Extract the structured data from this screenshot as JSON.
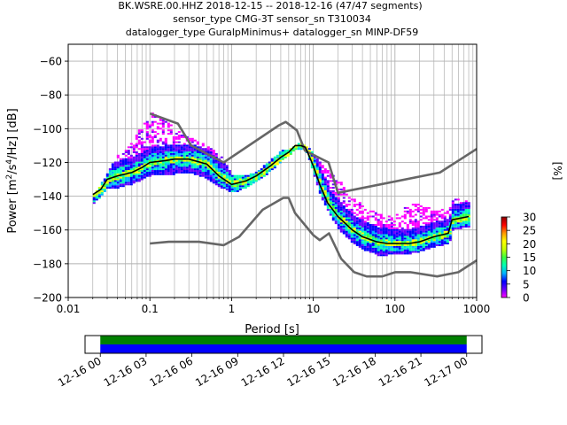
{
  "chart_data": [
    {
      "type": "heatmap",
      "subtype": "probabilistic-power-spectral-density",
      "title": "BK.WSRE.00.HHZ   2018-12-15 -- 2018-12-16  (47/47 segments)",
      "subtitle_1": "sensor_type CMG-3T sensor_sn T310034",
      "subtitle_2": "datalogger_type GuralpMinimus+ datalogger_sn MINP-DF59",
      "xlabel": "Period [s]",
      "ylabel": "Power [m²/s⁴/Hz] [dB]",
      "ylabel_parts": {
        "base": "Power [m",
        "sup1": "2",
        "mid1": "/s",
        "sup2": "4",
        "end": "/Hz] [dB]"
      },
      "xscale": "log",
      "xlim": [
        0.01,
        1000
      ],
      "ylim": [
        -200,
        -50
      ],
      "x_ticks": [
        0.01,
        0.1,
        1,
        10,
        100,
        1000
      ],
      "x_tick_labels": [
        "0.01",
        "0.1",
        "1",
        "10",
        "100",
        "1000"
      ],
      "y_ticks": [
        -60,
        -80,
        -100,
        -120,
        -140,
        -160,
        -180,
        -200
      ],
      "y_tick_labels": [
        "−60",
        "−80",
        "−100",
        "−120",
        "−140",
        "−160",
        "−180",
        "−200"
      ],
      "grid": true,
      "colorbar": {
        "label": "[%]",
        "range": [
          0,
          30
        ],
        "ticks": [
          0,
          5,
          10,
          15,
          20,
          25,
          30
        ],
        "tick_labels": [
          "0",
          "5",
          "10",
          "15",
          "20",
          "25",
          "30"
        ],
        "colormap": [
          "#ff00ff",
          "#6a00ff",
          "#0000ff",
          "#00b4ff",
          "#00ffb4",
          "#3cff3c",
          "#c8ff00",
          "#ffff00",
          "#ff9600",
          "#ff0000",
          "#8c0000"
        ]
      },
      "series": [
        {
          "role": "noise-model-high",
          "color": "#666666",
          "x": [
            0.1,
            0.22,
            0.32,
            0.8,
            3.8,
            4.6,
            6.3,
            7.9,
            15.4,
            20,
            354.8,
            1000
          ],
          "y": [
            -91,
            -97,
            -110,
            -120,
            -98,
            -96,
            -101,
            -113,
            -120,
            -138,
            -126,
            -112
          ]
        },
        {
          "role": "noise-model-low",
          "color": "#666666",
          "x": [
            0.1,
            0.17,
            0.4,
            0.8,
            1.24,
            2.4,
            4.3,
            5,
            6,
            10,
            12,
            15.6,
            21.9,
            31.6,
            45,
            70,
            101,
            154,
            328,
            600,
            1000
          ],
          "y": [
            -168,
            -167,
            -167,
            -169,
            -164,
            -148,
            -141,
            -141,
            -150,
            -163,
            -166,
            -162,
            -177,
            -185,
            -187.5,
            -187.5,
            -185,
            -185,
            -187.5,
            -185,
            -178
          ]
        },
        {
          "role": "mean-psd",
          "color": "#000000",
          "x": [
            0.02,
            0.025,
            0.03,
            0.04,
            0.06,
            0.08,
            0.1,
            0.15,
            0.2,
            0.3,
            0.5,
            0.7,
            1,
            1.5,
            2,
            3,
            4,
            5,
            6,
            7,
            8,
            10,
            12,
            15,
            20,
            30,
            40,
            60,
            80,
            100,
            150,
            200,
            300,
            450,
            500,
            800
          ],
          "y": [
            -139,
            -136,
            -130,
            -128,
            -126,
            -123,
            -120,
            -119,
            -118,
            -118,
            -121,
            -128,
            -133,
            -131,
            -128,
            -122,
            -117,
            -114,
            -110,
            -110,
            -111,
            -122,
            -133,
            -144,
            -152,
            -160,
            -164,
            -167,
            -168,
            -168,
            -168,
            -167,
            -164,
            -162,
            -154,
            -152
          ]
        }
      ],
      "heatmap_envelope": {
        "x": [
          0.02,
          0.025,
          0.03,
          0.04,
          0.06,
          0.08,
          0.1,
          0.15,
          0.2,
          0.3,
          0.5,
          0.7,
          1,
          1.5,
          2,
          3,
          4,
          5,
          6,
          7,
          8,
          10,
          12,
          15,
          20,
          30,
          40,
          60,
          80,
          100,
          150,
          200,
          300,
          450,
          500,
          800
        ],
        "y_max": [
          -139,
          -132,
          -125,
          -115,
          -108,
          -96,
          -90,
          -95,
          -100,
          -105,
          -110,
          -115,
          -128,
          -128,
          -125,
          -118,
          -113,
          -112,
          -109,
          -109,
          -110,
          -115,
          -120,
          -125,
          -130,
          -140,
          -145,
          -150,
          -152,
          -150,
          -145,
          -145,
          -148,
          -148,
          -142,
          -142
        ],
        "y_min": [
          -144,
          -140,
          -135,
          -135,
          -133,
          -130,
          -128,
          -127,
          -127,
          -126,
          -130,
          -135,
          -138,
          -135,
          -131,
          -125,
          -119,
          -116,
          -112,
          -112,
          -114,
          -128,
          -140,
          -150,
          -160,
          -168,
          -172,
          -175,
          -175,
          -174,
          -174,
          -173,
          -170,
          -168,
          -160,
          -158
        ]
      }
    },
    {
      "type": "timeline",
      "x_tick_labels": [
        "12-16 00",
        "12-16 03",
        "12-16 06",
        "12-16 09",
        "12-16 12",
        "12-16 15",
        "12-16 18",
        "12-16 21",
        "12-17 00"
      ],
      "xlim_hours": [
        -1,
        25
      ],
      "coverage": [
        {
          "start_hour": 0,
          "end_hour": 24,
          "color": "#008000"
        },
        {
          "start_hour": 0,
          "end_hour": 24,
          "color": "#0000ff"
        }
      ]
    }
  ]
}
